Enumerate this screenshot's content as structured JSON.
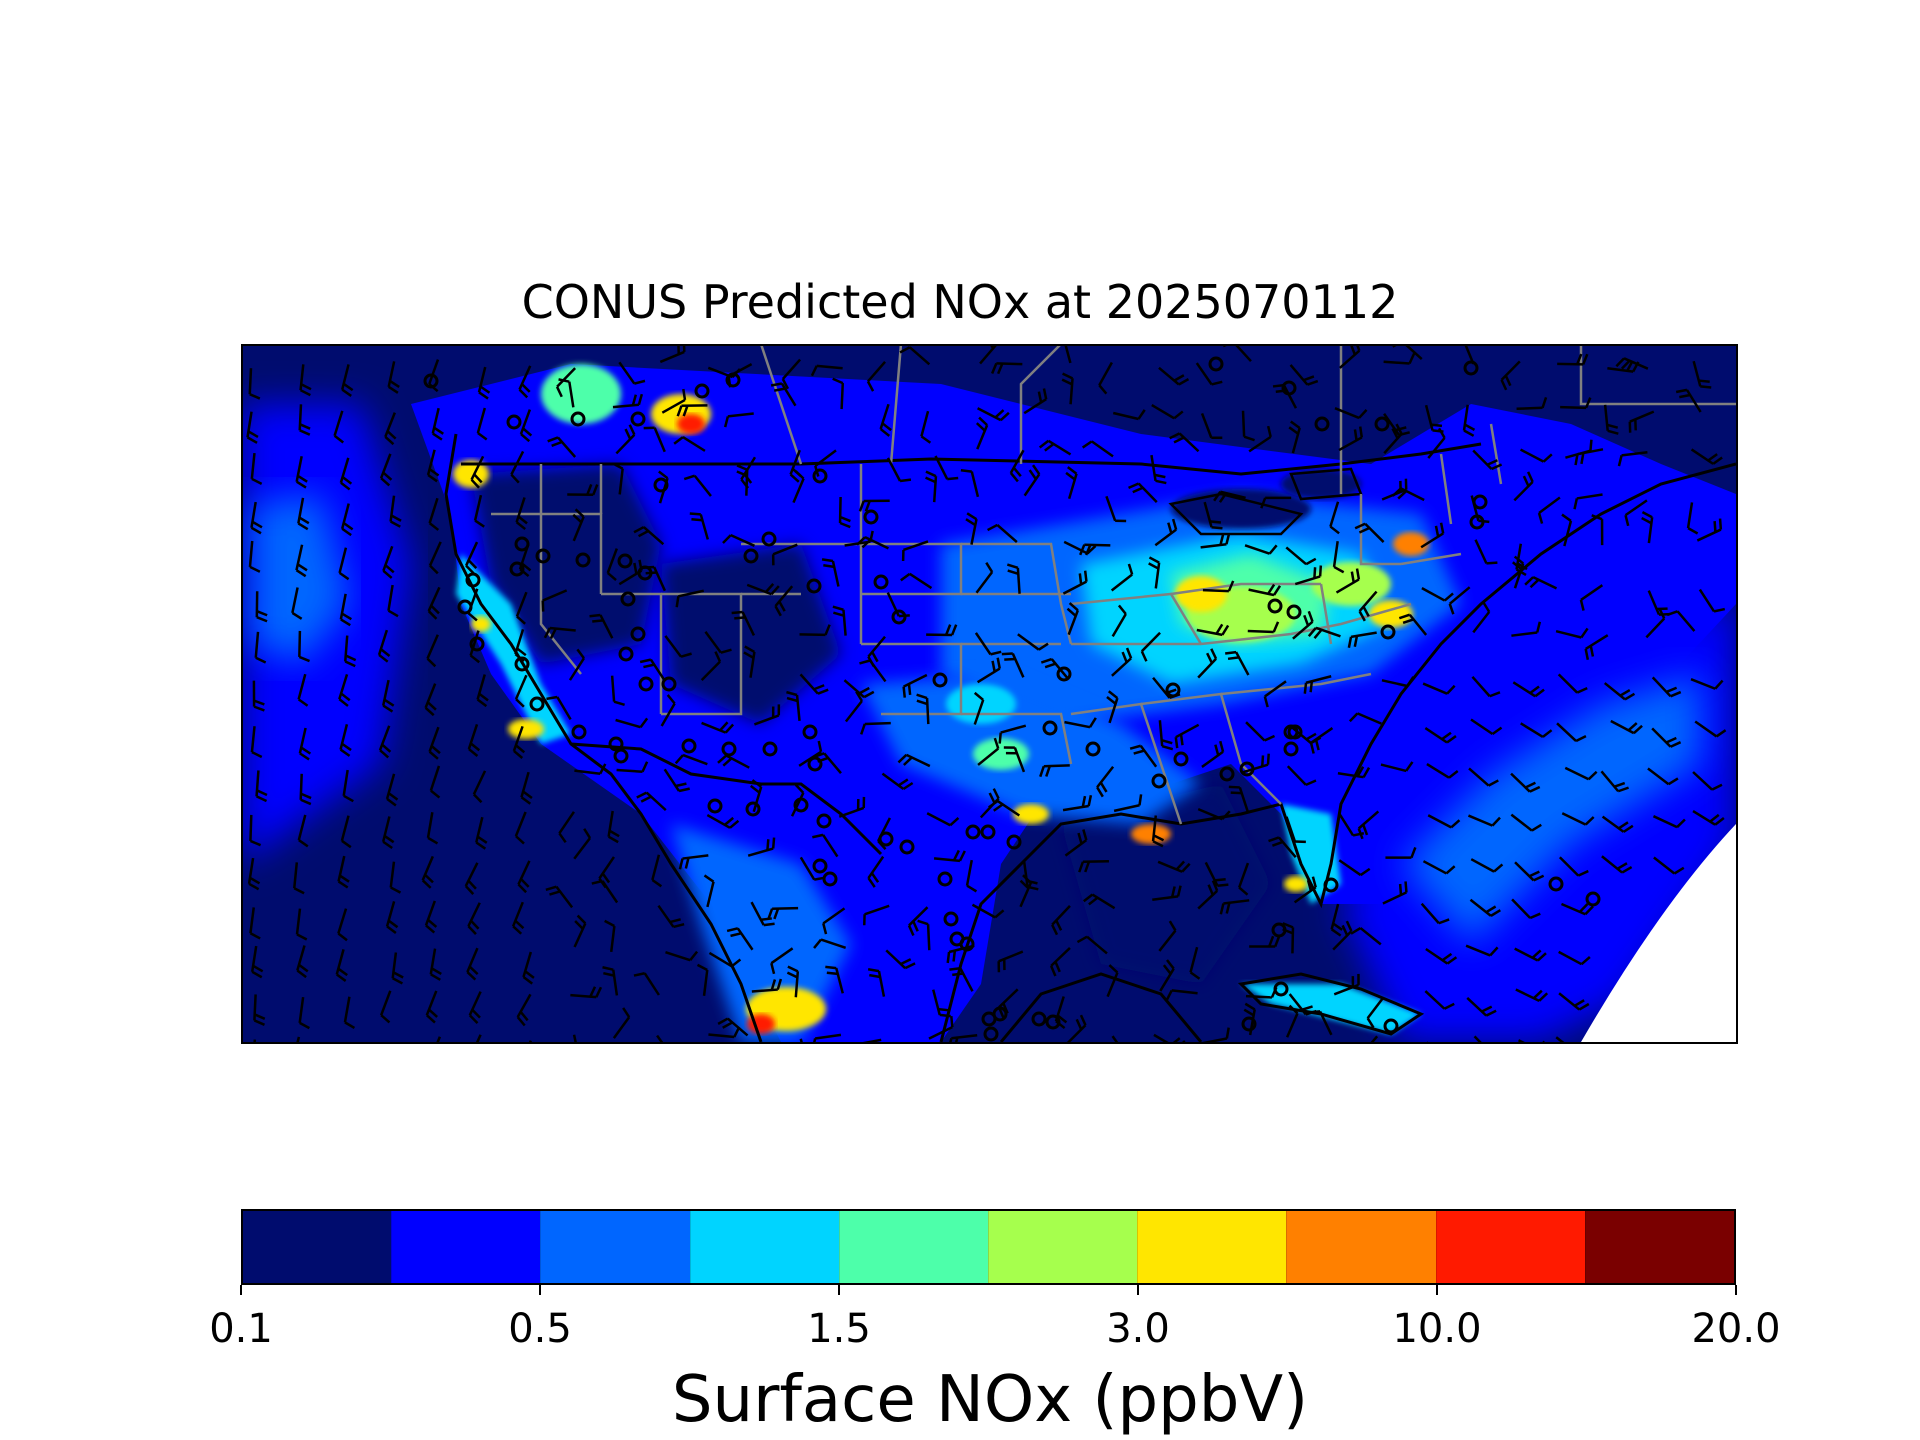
{
  "title": "CONUS Predicted NOx at 2025070112",
  "colorbar": {
    "label": "Surface NOx (ppbV)",
    "ticks": [
      "0.1",
      "0.5",
      "1.5",
      "3.0",
      "10.0",
      "20.0"
    ],
    "colors": [
      "#000c6e",
      "#0000ff",
      "#0066ff",
      "#00d4ff",
      "#4dffaa",
      "#a6ff4d",
      "#ffe600",
      "#ff8000",
      "#ff1a00",
      "#7a0000"
    ]
  },
  "map": {
    "variable": "Surface NOx",
    "units": "ppbV",
    "overlays": [
      "wind-barbs",
      "calm-wind-circles",
      "state-boundaries",
      "country-boundaries",
      "coastlines"
    ]
  }
}
